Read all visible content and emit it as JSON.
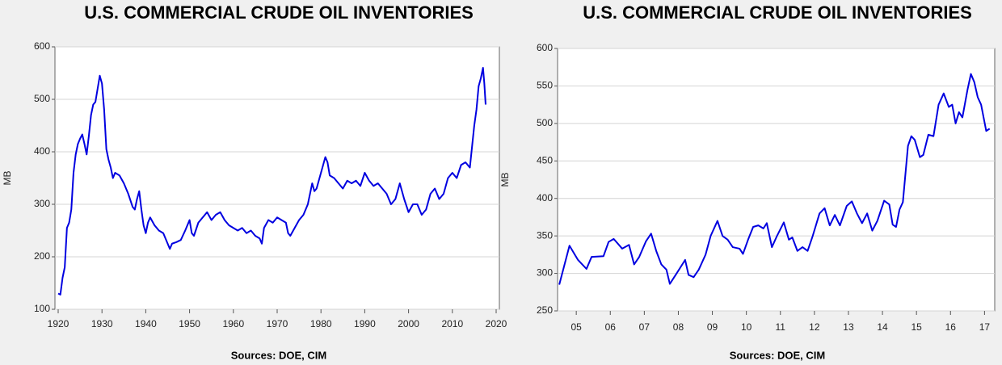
{
  "chart_data": [
    {
      "type": "line",
      "title": "U.S. COMMERCIAL CRUDE OIL INVENTORIES",
      "y_label": "MB",
      "source": "Sources:  DOE, CIM",
      "xlim": [
        1920,
        2020
      ],
      "xticks": [
        1920,
        1930,
        1940,
        1950,
        1960,
        1970,
        1980,
        1990,
        2000,
        2010,
        2020
      ],
      "ylim": [
        100,
        600
      ],
      "yticks": [
        100,
        200,
        300,
        400,
        500,
        600
      ],
      "grid": true,
      "color": "#0000e0",
      "x": [
        1920,
        1920.5,
        1921,
        1921.5,
        1922,
        1922.5,
        1923,
        1923.5,
        1924,
        1924.5,
        1925,
        1925.5,
        1926,
        1926.5,
        1927,
        1927.5,
        1928,
        1928.5,
        1929,
        1929.5,
        1930,
        1930.5,
        1931,
        1931.5,
        1932,
        1932.5,
        1933,
        1934,
        1935,
        1936,
        1937,
        1937.5,
        1938,
        1938.5,
        1939,
        1939.5,
        1940,
        1940.5,
        1941,
        1942,
        1943,
        1944,
        1945,
        1945.5,
        1946,
        1947,
        1948,
        1949,
        1950,
        1950.5,
        1951,
        1952,
        1953,
        1954,
        1955,
        1956,
        1957,
        1958,
        1959,
        1960,
        1961,
        1962,
        1963,
        1964,
        1965,
        1966,
        1966.5,
        1967,
        1968,
        1969,
        1970,
        1971,
        1972,
        1972.5,
        1973,
        1974,
        1975,
        1976,
        1977,
        1978,
        1978.5,
        1979,
        1980,
        1981,
        1981.5,
        1982,
        1983,
        1984,
        1985,
        1986,
        1987,
        1988,
        1989,
        1990,
        1991,
        1992,
        1993,
        1994,
        1995,
        1996,
        1997,
        1998,
        1999,
        2000,
        2001,
        2002,
        2003,
        2004,
        2005,
        2006,
        2007,
        2008,
        2009,
        2010,
        2011,
        2012,
        2013,
        2014,
        2015,
        2015.5,
        2016,
        2016.5,
        2017,
        2017.3,
        2017.6
      ],
      "values": [
        130,
        128,
        160,
        180,
        255,
        265,
        290,
        360,
        395,
        415,
        425,
        433,
        415,
        395,
        430,
        470,
        490,
        495,
        520,
        545,
        530,
        480,
        405,
        385,
        370,
        350,
        360,
        355,
        340,
        320,
        295,
        290,
        310,
        325,
        290,
        260,
        245,
        265,
        275,
        260,
        250,
        245,
        225,
        215,
        225,
        228,
        232,
        250,
        270,
        245,
        240,
        265,
        275,
        285,
        270,
        280,
        285,
        270,
        260,
        255,
        250,
        255,
        245,
        250,
        240,
        235,
        225,
        255,
        270,
        265,
        275,
        270,
        265,
        245,
        240,
        255,
        270,
        280,
        300,
        340,
        325,
        330,
        360,
        390,
        380,
        355,
        350,
        340,
        330,
        345,
        340,
        345,
        335,
        360,
        345,
        335,
        340,
        330,
        320,
        300,
        310,
        340,
        310,
        285,
        300,
        300,
        280,
        290,
        320,
        330,
        310,
        320,
        350,
        360,
        350,
        375,
        380,
        370,
        450,
        480,
        525,
        540,
        560,
        530,
        490
      ]
    },
    {
      "type": "line",
      "title": "U.S. COMMERCIAL CRUDE OIL INVENTORIES",
      "y_label": "MB",
      "source": "Sources:  DOE, CIM",
      "xlim": [
        2004.95,
        2017.8
      ],
      "xticks": [
        {
          "value": 2005.5,
          "label": "05"
        },
        {
          "value": 2006.5,
          "label": "06"
        },
        {
          "value": 2007.5,
          "label": "07"
        },
        {
          "value": 2008.5,
          "label": "08"
        },
        {
          "value": 2009.5,
          "label": "09"
        },
        {
          "value": 2010.5,
          "label": "10"
        },
        {
          "value": 2011.5,
          "label": "11"
        },
        {
          "value": 2012.5,
          "label": "12"
        },
        {
          "value": 2013.5,
          "label": "13"
        },
        {
          "value": 2014.5,
          "label": "14"
        },
        {
          "value": 2015.5,
          "label": "15"
        },
        {
          "value": 2016.5,
          "label": "16"
        },
        {
          "value": 2017.5,
          "label": "17"
        }
      ],
      "ylim": [
        250,
        600
      ],
      "yticks": [
        250,
        300,
        350,
        400,
        450,
        500,
        550,
        600
      ],
      "grid": true,
      "color": "#0000e0",
      "x": [
        2005.0,
        2005.3,
        2005.55,
        2005.8,
        2005.95,
        2006.3,
        2006.45,
        2006.6,
        2006.85,
        2007.05,
        2007.2,
        2007.35,
        2007.55,
        2007.7,
        2007.85,
        2008.0,
        2008.15,
        2008.25,
        2008.45,
        2008.7,
        2008.8,
        2008.95,
        2009.1,
        2009.3,
        2009.45,
        2009.65,
        2009.8,
        2009.95,
        2010.1,
        2010.3,
        2010.4,
        2010.55,
        2010.7,
        2010.85,
        2011.0,
        2011.1,
        2011.25,
        2011.4,
        2011.6,
        2011.75,
        2011.85,
        2012.0,
        2012.15,
        2012.3,
        2012.45,
        2012.65,
        2012.8,
        2012.95,
        2013.1,
        2013.25,
        2013.45,
        2013.6,
        2013.75,
        2013.9,
        2014.05,
        2014.2,
        2014.35,
        2014.55,
        2014.7,
        2014.8,
        2014.9,
        2015.0,
        2015.1,
        2015.25,
        2015.35,
        2015.45,
        2015.6,
        2015.7,
        2015.85,
        2016.0,
        2016.15,
        2016.3,
        2016.45,
        2016.55,
        2016.65,
        2016.75,
        2016.85,
        2017.0,
        2017.1,
        2017.2,
        2017.3,
        2017.4,
        2017.55,
        2017.65
      ],
      "values": [
        285,
        337,
        318,
        306,
        322,
        323,
        342,
        346,
        333,
        338,
        312,
        322,
        343,
        353,
        330,
        312,
        305,
        286,
        300,
        318,
        298,
        295,
        305,
        325,
        350,
        370,
        350,
        345,
        335,
        333,
        326,
        345,
        362,
        364,
        360,
        367,
        335,
        350,
        368,
        345,
        348,
        330,
        335,
        330,
        350,
        380,
        387,
        364,
        378,
        364,
        390,
        396,
        380,
        367,
        380,
        357,
        370,
        397,
        392,
        365,
        362,
        385,
        395,
        470,
        483,
        478,
        455,
        458,
        485,
        483,
        525,
        540,
        522,
        525,
        500,
        515,
        508,
        545,
        566,
        555,
        535,
        525,
        490,
        493
      ]
    }
  ]
}
